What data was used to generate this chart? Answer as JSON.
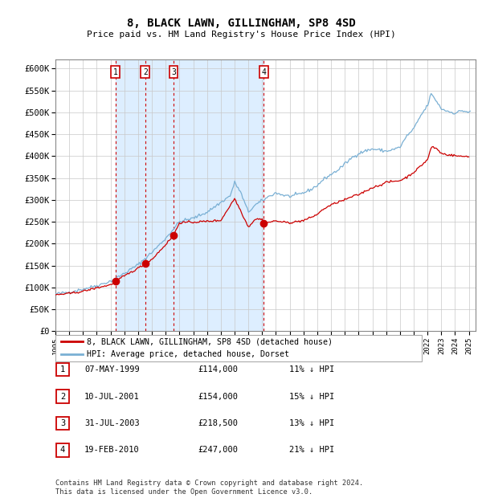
{
  "title": "8, BLACK LAWN, GILLINGHAM, SP8 4SD",
  "subtitle": "Price paid vs. HM Land Registry's House Price Index (HPI)",
  "legend_property": "8, BLACK LAWN, GILLINGHAM, SP8 4SD (detached house)",
  "legend_hpi": "HPI: Average price, detached house, Dorset",
  "property_color": "#cc0000",
  "hpi_color": "#7ab0d4",
  "shading_color": "#ddeeff",
  "purchases": [
    {
      "date": 1999.35,
      "price": 114000,
      "label": "1"
    },
    {
      "date": 2001.52,
      "price": 154000,
      "label": "2"
    },
    {
      "date": 2003.57,
      "price": 218500,
      "label": "3"
    },
    {
      "date": 2010.12,
      "price": 247000,
      "label": "4"
    }
  ],
  "table_rows": [
    {
      "num": "1",
      "date": "07-MAY-1999",
      "price": "£114,000",
      "note": "11% ↓ HPI"
    },
    {
      "num": "2",
      "date": "10-JUL-2001",
      "price": "£154,000",
      "note": "15% ↓ HPI"
    },
    {
      "num": "3",
      "date": "31-JUL-2003",
      "price": "£218,500",
      "note": "13% ↓ HPI"
    },
    {
      "num": "4",
      "date": "19-FEB-2010",
      "price": "£247,000",
      "note": "21% ↓ HPI"
    }
  ],
  "footer_line1": "Contains HM Land Registry data © Crown copyright and database right 2024.",
  "footer_line2": "This data is licensed under the Open Government Licence v3.0.",
  "ylim": [
    0,
    620000
  ],
  "yticks": [
    0,
    50000,
    100000,
    150000,
    200000,
    250000,
    300000,
    350000,
    400000,
    450000,
    500000,
    550000,
    600000
  ],
  "xlim": [
    1995.0,
    2025.5
  ],
  "xticks": [
    1995,
    1996,
    1997,
    1998,
    1999,
    2000,
    2001,
    2002,
    2003,
    2004,
    2005,
    2006,
    2007,
    2008,
    2009,
    2010,
    2011,
    2012,
    2013,
    2014,
    2015,
    2016,
    2017,
    2018,
    2019,
    2020,
    2021,
    2022,
    2023,
    2024,
    2025
  ]
}
